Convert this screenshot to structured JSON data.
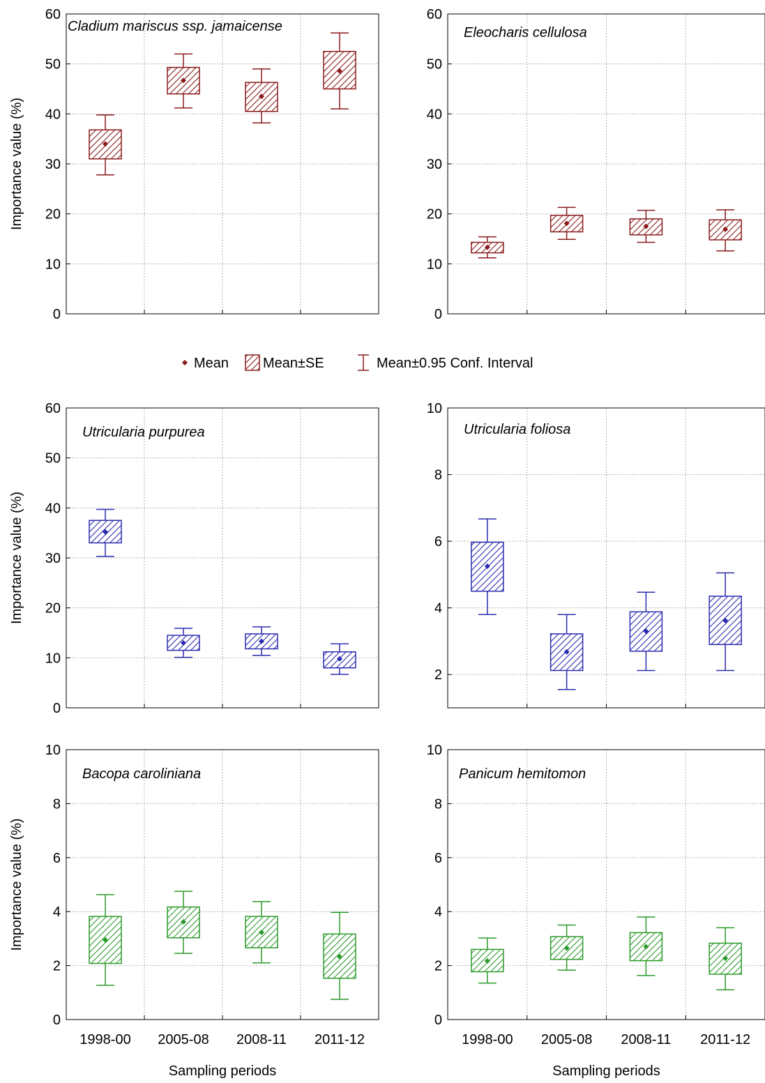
{
  "legend": {
    "mean_label": "Mean",
    "se_label": "Mean±SE",
    "ci_label": "Mean±0.95 Conf. Interval"
  },
  "colors": {
    "red": "#8b1a1a",
    "blue": "#2b2bb0",
    "green": "#2a9a2a"
  },
  "chart_data": [
    {
      "type": "box",
      "title": "Cladium mariscus ssp. jamaicense",
      "ylabel": "Importance value (%)",
      "xlabel": "",
      "ylim": [
        0,
        60
      ],
      "yticks": [
        0,
        10,
        20,
        30,
        40,
        50,
        60
      ],
      "color": "red",
      "categories": [
        "1998-00",
        "2005-08",
        "2008-11",
        "2011-12"
      ],
      "mean": [
        34,
        46.7,
        43.5,
        48.6
      ],
      "se_low": [
        31,
        44,
        40.5,
        45
      ],
      "se_high": [
        36.8,
        49.3,
        46.3,
        52.5
      ],
      "ci_low": [
        27.8,
        41.2,
        38.2,
        41
      ],
      "ci_high": [
        39.8,
        52,
        49,
        56.2
      ]
    },
    {
      "type": "box",
      "title": "Eleocharis cellulosa",
      "ylabel": "",
      "xlabel": "",
      "ylim": [
        0,
        60
      ],
      "yticks": [
        0,
        10,
        20,
        30,
        40,
        50,
        60
      ],
      "color": "red",
      "categories": [
        "1998-00",
        "2005-08",
        "2008-11",
        "2011-12"
      ],
      "mean": [
        13.3,
        18.1,
        17.5,
        16.9
      ],
      "se_low": [
        12.2,
        16.4,
        15.8,
        14.8
      ],
      "se_high": [
        14.3,
        19.7,
        19,
        18.8
      ],
      "ci_low": [
        11.2,
        14.9,
        14.3,
        12.6
      ],
      "ci_high": [
        15.4,
        21.3,
        20.7,
        20.8
      ]
    },
    {
      "type": "box",
      "title": "Utricularia purpurea",
      "ylabel": "Importance value (%)",
      "xlabel": "",
      "ylim": [
        0,
        60
      ],
      "yticks": [
        0,
        10,
        20,
        30,
        40,
        50,
        60
      ],
      "color": "blue",
      "categories": [
        "1998-00",
        "2005-08",
        "2008-11",
        "2011-12"
      ],
      "mean": [
        35.2,
        13,
        13.3,
        9.8
      ],
      "se_low": [
        33,
        11.5,
        11.8,
        8
      ],
      "se_high": [
        37.5,
        14.5,
        14.8,
        11.2
      ],
      "ci_low": [
        30.3,
        10.1,
        10.5,
        6.7
      ],
      "ci_high": [
        39.7,
        15.9,
        16.2,
        12.8
      ]
    },
    {
      "type": "box",
      "title": "Utricularia foliosa",
      "ylabel": "",
      "xlabel": "",
      "ylim": [
        1,
        10
      ],
      "yticks": [
        2,
        4,
        6,
        8,
        10
      ],
      "color": "blue",
      "categories": [
        "1998-00",
        "2005-08",
        "2008-11",
        "2011-12"
      ],
      "mean": [
        5.25,
        2.68,
        3.3,
        3.62
      ],
      "se_low": [
        4.5,
        2.12,
        2.7,
        2.9
      ],
      "se_high": [
        5.97,
        3.22,
        3.88,
        4.35
      ],
      "ci_low": [
        3.8,
        1.55,
        2.12,
        2.12
      ],
      "ci_high": [
        6.67,
        3.8,
        4.47,
        5.05
      ]
    },
    {
      "type": "box",
      "title": "Bacopa caroliniana",
      "ylabel": "Importance value (%)",
      "xlabel": "Sampling periods",
      "ylim": [
        0,
        10
      ],
      "yticks": [
        0,
        2,
        4,
        6,
        8,
        10
      ],
      "color": "green",
      "categories": [
        "1998-00",
        "2005-08",
        "2008-11",
        "2011-12"
      ],
      "mean": [
        2.95,
        3.62,
        3.23,
        2.33
      ],
      "se_low": [
        2.08,
        3.03,
        2.66,
        1.53
      ],
      "se_high": [
        3.82,
        4.17,
        3.82,
        3.17
      ],
      "ci_low": [
        1.27,
        2.45,
        2.1,
        0.75
      ],
      "ci_high": [
        4.63,
        4.75,
        4.37,
        3.97
      ]
    },
    {
      "type": "box",
      "title": "Panicum hemitomon",
      "ylabel": "",
      "xlabel": "Sampling periods",
      "ylim": [
        0,
        10
      ],
      "yticks": [
        0,
        2,
        4,
        6,
        8,
        10
      ],
      "color": "green",
      "categories": [
        "1998-00",
        "2005-08",
        "2008-11",
        "2011-12"
      ],
      "mean": [
        2.17,
        2.65,
        2.7,
        2.27
      ],
      "se_low": [
        1.77,
        2.23,
        2.18,
        1.68
      ],
      "se_high": [
        2.6,
        3.07,
        3.22,
        2.83
      ],
      "ci_low": [
        1.35,
        1.83,
        1.63,
        1.1
      ],
      "ci_high": [
        3.02,
        3.5,
        3.8,
        3.4
      ]
    }
  ]
}
